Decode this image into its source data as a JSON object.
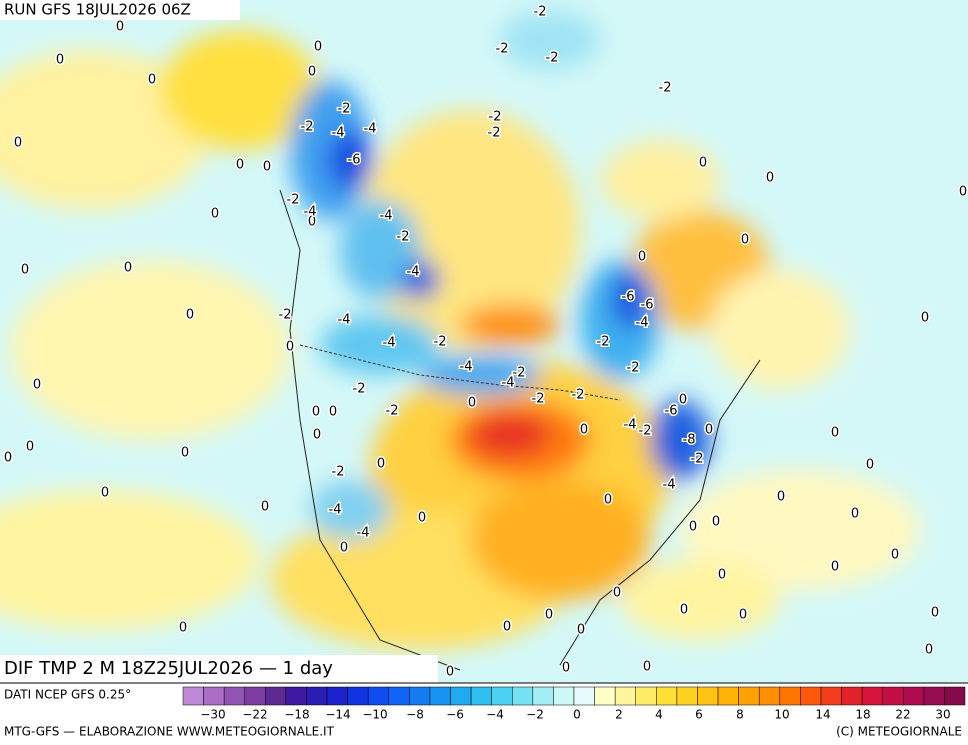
{
  "header": {
    "run": "RUN GFS 18JUL2026 06Z"
  },
  "panel": {
    "title": "DIF TMP 2 M 18Z25JUL2026 — 1 day"
  },
  "contour_labels": [
    "0",
    "0",
    "0",
    "0",
    "0",
    "0",
    "0",
    "0",
    "0",
    "0",
    "0",
    "0",
    "0",
    "0",
    "0",
    "0",
    "0",
    "0",
    "0",
    "0",
    "0",
    "0",
    "0",
    "0",
    "0",
    "0",
    "0",
    "0",
    "0",
    "0",
    "0",
    "0",
    "0",
    "0",
    "0",
    "0",
    "0",
    "0",
    "0",
    "0",
    "0",
    "0",
    "0",
    "0",
    "0",
    "0",
    "0",
    "0",
    "0",
    "0",
    "0",
    "0",
    "0",
    "0",
    "0",
    "0",
    "0",
    "0",
    "-2",
    "-2",
    "-2",
    "-2",
    "-2",
    "-2",
    "-2",
    "-2",
    "-2",
    "-2",
    "-2",
    "-2",
    "-2",
    "-2",
    "-2",
    "-2",
    "-2",
    "-2",
    "-2",
    "-2",
    "-2",
    "-2",
    "-4",
    "-4",
    "-4",
    "-4",
    "-4",
    "-4",
    "-4",
    "-4",
    "-4",
    "-4",
    "-4",
    "-4",
    "-4",
    "-4",
    "-6",
    "-6",
    "-6",
    "-6",
    "-8"
  ],
  "legend": {
    "source": "DATI NCEP GFS 0.25°",
    "colors": [
      "#c08ad6",
      "#a96fc6",
      "#9355b4",
      "#7c3ea2",
      "#5e2a92",
      "#3e1ba0",
      "#2c1cb6",
      "#1c22cc",
      "#1234e0",
      "#104cf0",
      "#1064f6",
      "#147cf2",
      "#1894f0",
      "#20aaf0",
      "#30c0f0",
      "#4cd2f2",
      "#74e2f2",
      "#a2eef4",
      "#ccf8f8",
      "#e6fcfc",
      "#ffffc8",
      "#fff59a",
      "#ffec66",
      "#ffe034",
      "#ffd222",
      "#ffc212",
      "#ffb204",
      "#ffa200",
      "#ff8e00",
      "#ff7400",
      "#ff5a0c",
      "#f23c1c",
      "#e2222a",
      "#d41438",
      "#c40e46",
      "#ae0c4e",
      "#980c50",
      "#840a4a"
    ],
    "labels": [
      "−30",
      "−22",
      "−18",
      "−14",
      "−10",
      "−8",
      "−6",
      "−4",
      "−2",
      "0",
      "2",
      "4",
      "6",
      "8",
      "10",
      "14",
      "18",
      "22",
      "30"
    ]
  },
  "footer": {
    "left": "MTG-GFS — ELABORAZIONE WWW.METEOGIORNALE.IT",
    "right": "(C) METEOGIORNALE"
  }
}
